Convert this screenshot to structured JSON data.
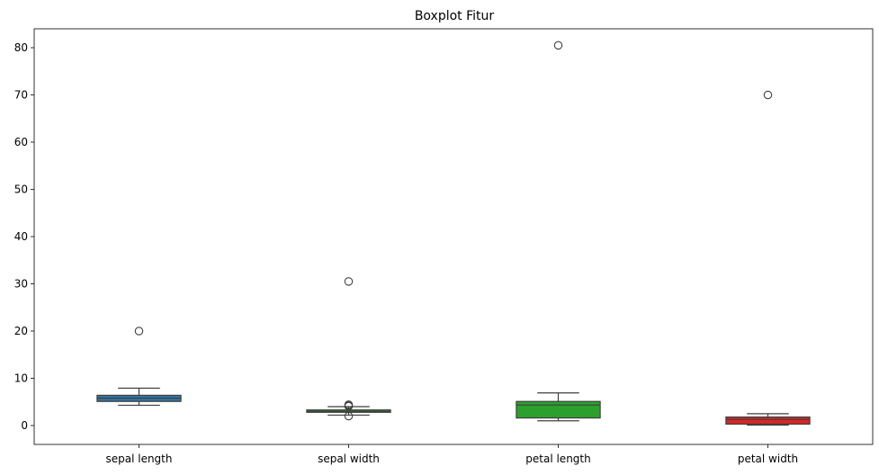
{
  "chart_data": {
    "type": "boxplot",
    "title": "Boxplot Fitur",
    "xlabel": "",
    "ylabel": "",
    "categories": [
      "sepal length",
      "sepal width",
      "petal length",
      "petal width"
    ],
    "ylim": [
      -4,
      84
    ],
    "yticks": [
      0,
      10,
      20,
      30,
      40,
      50,
      60,
      70,
      80
    ],
    "grid": false,
    "boxes": [
      {
        "category": "sepal length",
        "whisker_low": 4.3,
        "q1": 5.1,
        "median": 5.8,
        "q3": 6.4,
        "whisker_high": 7.9,
        "outliers": [
          20.0
        ],
        "color": "#3274a1"
      },
      {
        "category": "sepal width",
        "whisker_low": 2.2,
        "q1": 2.8,
        "median": 3.0,
        "q3": 3.3,
        "whisker_high": 4.0,
        "outliers": [
          30.5,
          4.1,
          4.2,
          4.4,
          2.0
        ],
        "color": "#3a923a"
      },
      {
        "category": "petal length",
        "whisker_low": 1.0,
        "q1": 1.6,
        "median": 4.35,
        "q3": 5.1,
        "whisker_high": 6.9,
        "outliers": [
          80.5
        ],
        "color": "#2ca02c"
      },
      {
        "category": "petal width",
        "whisker_low": 0.1,
        "q1": 0.3,
        "median": 1.3,
        "q3": 1.8,
        "whisker_high": 2.5,
        "outliers": [
          70.0
        ],
        "color": "#d62728"
      }
    ]
  }
}
